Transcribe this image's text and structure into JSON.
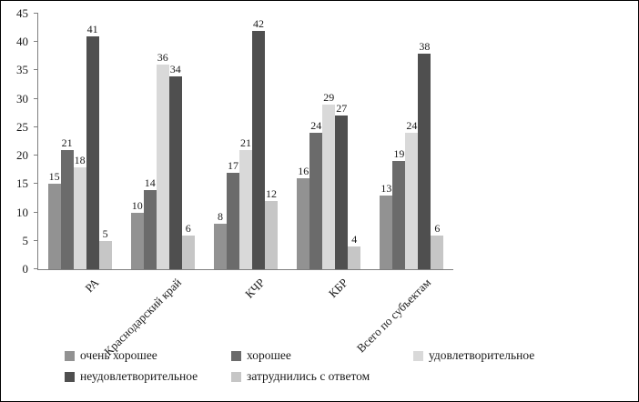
{
  "chart_data": {
    "type": "bar",
    "title": "",
    "xlabel": "",
    "ylabel": "",
    "categories": [
      "РА",
      "Краснодарский край",
      "КЧР",
      "КБР",
      "Всего по субъектам"
    ],
    "series": [
      {
        "name": "очень хорошее",
        "color": "#929292",
        "values": [
          15,
          10,
          8,
          16,
          13
        ]
      },
      {
        "name": "хорошее",
        "color": "#6b6b6b",
        "values": [
          21,
          14,
          17,
          24,
          19
        ]
      },
      {
        "name": "удовлетворительное",
        "color": "#d9d9d9",
        "values": [
          18,
          36,
          21,
          29,
          24
        ]
      },
      {
        "name": "неудовлетворительное",
        "color": "#4f4f4f",
        "values": [
          41,
          34,
          42,
          27,
          38
        ]
      },
      {
        "name": "затруднились с ответом",
        "color": "#c6c6c6",
        "values": [
          5,
          6,
          12,
          4,
          6
        ]
      }
    ],
    "ylim": [
      0,
      45
    ],
    "ytick_step": 5,
    "grid": false,
    "legend_position": "bottom",
    "data_labels": true
  }
}
